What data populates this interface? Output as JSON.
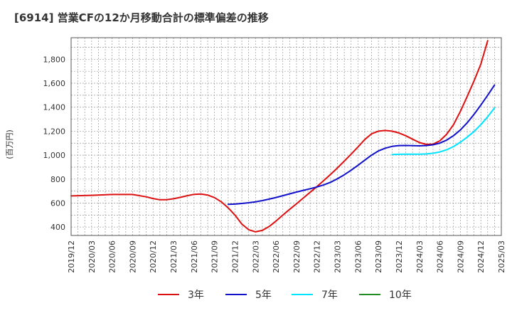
{
  "chart_data": {
    "type": "line",
    "title": "[6914]  営業CFの12か月移動合計の標準偏差の推移",
    "ylabel": "(百万円)",
    "ylim": [
      330,
      1980
    ],
    "yticks": [
      400,
      600,
      800,
      1000,
      1200,
      1400,
      1600,
      1800
    ],
    "ytick_labels": [
      "400",
      "600",
      "800",
      "1,000",
      "1,200",
      "1,400",
      "1,600",
      "1,800"
    ],
    "xlim": [
      "2019-12",
      "2025-03"
    ],
    "xtick_labels": [
      "2019/12",
      "2020/03",
      "2020/06",
      "2020/09",
      "2020/12",
      "2021/03",
      "2021/06",
      "2021/09",
      "2021/12",
      "2022/03",
      "2022/06",
      "2022/09",
      "2022/12",
      "2023/03",
      "2023/06",
      "2023/09",
      "2023/12",
      "2024/03",
      "2024/06",
      "2024/09",
      "2024/12",
      "2025/03"
    ],
    "grid": true,
    "legend_position": "bottom",
    "series": [
      {
        "name": "3年",
        "color": "#dd1111",
        "points": [
          [
            "2019-12",
            660
          ],
          [
            "2020-03",
            665
          ],
          [
            "2020-06",
            672
          ],
          [
            "2020-09",
            672
          ],
          [
            "2020-11",
            652
          ],
          [
            "2020-12",
            638
          ],
          [
            "2021-01",
            628
          ],
          [
            "2021-02",
            628
          ],
          [
            "2021-03",
            636
          ],
          [
            "2021-04",
            648
          ],
          [
            "2021-05",
            662
          ],
          [
            "2021-06",
            673
          ],
          [
            "2021-07",
            676
          ],
          [
            "2021-08",
            667
          ],
          [
            "2021-09",
            646
          ],
          [
            "2021-10",
            610
          ],
          [
            "2021-11",
            560
          ],
          [
            "2021-12",
            500
          ],
          [
            "2022-01",
            425
          ],
          [
            "2022-02",
            378
          ],
          [
            "2022-03",
            360
          ],
          [
            "2022-04",
            372
          ],
          [
            "2022-05",
            405
          ],
          [
            "2022-06",
            450
          ],
          [
            "2022-07",
            500
          ],
          [
            "2022-08",
            548
          ],
          [
            "2022-09",
            594
          ],
          [
            "2022-10",
            642
          ],
          [
            "2022-11",
            690
          ],
          [
            "2022-12",
            738
          ],
          [
            "2023-01",
            788
          ],
          [
            "2023-02",
            840
          ],
          [
            "2023-03",
            893
          ],
          [
            "2023-04",
            950
          ],
          [
            "2023-05",
            1008
          ],
          [
            "2023-06",
            1068
          ],
          [
            "2023-07",
            1130
          ],
          [
            "2023-08",
            1178
          ],
          [
            "2023-09",
            1200
          ],
          [
            "2023-10",
            1206
          ],
          [
            "2023-11",
            1200
          ],
          [
            "2023-12",
            1185
          ],
          [
            "2024-01",
            1162
          ],
          [
            "2024-02",
            1133
          ],
          [
            "2024-03",
            1105
          ],
          [
            "2024-04",
            1090
          ],
          [
            "2024-05",
            1092
          ],
          [
            "2024-06",
            1120
          ],
          [
            "2024-07",
            1175
          ],
          [
            "2024-08",
            1255
          ],
          [
            "2024-09",
            1365
          ],
          [
            "2024-10",
            1490
          ],
          [
            "2024-11",
            1620
          ],
          [
            "2024-12",
            1760
          ],
          [
            "2025-01",
            1955
          ]
        ]
      },
      {
        "name": "5年",
        "color": "#1111cc",
        "points": [
          [
            "2021-11",
            590
          ],
          [
            "2021-12",
            592
          ],
          [
            "2022-01",
            597
          ],
          [
            "2022-02",
            603
          ],
          [
            "2022-03",
            611
          ],
          [
            "2022-04",
            621
          ],
          [
            "2022-05",
            633
          ],
          [
            "2022-06",
            647
          ],
          [
            "2022-07",
            662
          ],
          [
            "2022-08",
            677
          ],
          [
            "2022-09",
            692
          ],
          [
            "2022-10",
            706
          ],
          [
            "2022-11",
            720
          ],
          [
            "2022-12",
            735
          ],
          [
            "2023-01",
            752
          ],
          [
            "2023-02",
            774
          ],
          [
            "2023-03",
            803
          ],
          [
            "2023-04",
            836
          ],
          [
            "2023-05",
            874
          ],
          [
            "2023-06",
            915
          ],
          [
            "2023-07",
            958
          ],
          [
            "2023-08",
            1000
          ],
          [
            "2023-09",
            1035
          ],
          [
            "2023-10",
            1058
          ],
          [
            "2023-11",
            1073
          ],
          [
            "2023-12",
            1080
          ],
          [
            "2024-01",
            1081
          ],
          [
            "2024-02",
            1079
          ],
          [
            "2024-03",
            1078
          ],
          [
            "2024-04",
            1080
          ],
          [
            "2024-05",
            1087
          ],
          [
            "2024-06",
            1101
          ],
          [
            "2024-07",
            1126
          ],
          [
            "2024-08",
            1163
          ],
          [
            "2024-09",
            1210
          ],
          [
            "2024-10",
            1270
          ],
          [
            "2024-11",
            1340
          ],
          [
            "2024-12",
            1418
          ],
          [
            "2025-01",
            1500
          ],
          [
            "2025-02",
            1585
          ]
        ]
      },
      {
        "name": "7年",
        "color": "#00e5ff",
        "points": [
          [
            "2023-11",
            1005
          ],
          [
            "2023-12",
            1007
          ],
          [
            "2024-01",
            1008
          ],
          [
            "2024-02",
            1008
          ],
          [
            "2024-03",
            1008
          ],
          [
            "2024-04",
            1010
          ],
          [
            "2024-05",
            1016
          ],
          [
            "2024-06",
            1027
          ],
          [
            "2024-07",
            1045
          ],
          [
            "2024-08",
            1072
          ],
          [
            "2024-09",
            1108
          ],
          [
            "2024-10",
            1150
          ],
          [
            "2024-11",
            1198
          ],
          [
            "2024-12",
            1255
          ],
          [
            "2025-01",
            1320
          ],
          [
            "2025-02",
            1395
          ]
        ]
      },
      {
        "name": "10年",
        "color": "#228b22",
        "points": []
      }
    ]
  }
}
